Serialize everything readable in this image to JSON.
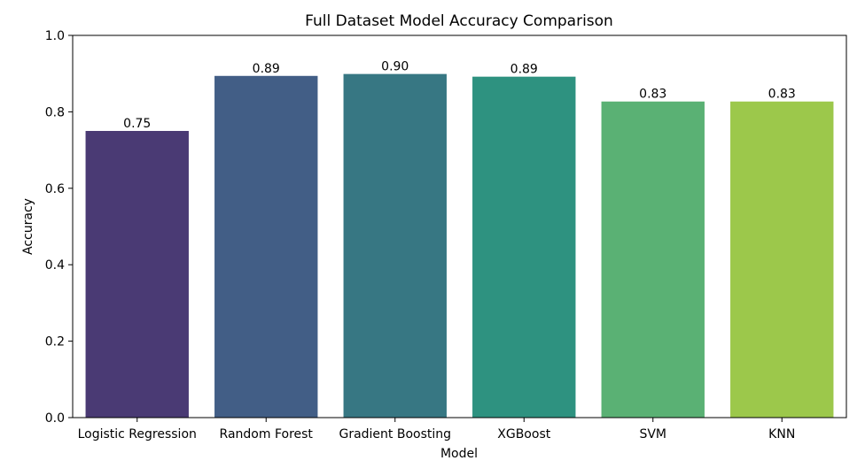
{
  "chart_data": {
    "type": "bar",
    "title": "Full Dataset Model Accuracy Comparison",
    "xlabel": "Model",
    "ylabel": "Accuracy",
    "categories": [
      "Logistic Regression",
      "Random Forest",
      "Gradient Boosting",
      "XGBoost",
      "SVM",
      "KNN"
    ],
    "values": [
      0.75,
      0.894,
      0.899,
      0.892,
      0.827,
      0.827
    ],
    "value_labels": [
      "0.75",
      "0.89",
      "0.90",
      "0.89",
      "0.83",
      "0.83"
    ],
    "ylim": [
      0,
      1.0
    ],
    "yticks": [
      0.0,
      0.2,
      0.4,
      0.6,
      0.8,
      1.0
    ],
    "ytick_labels": [
      "0.0",
      "0.2",
      "0.4",
      "0.6",
      "0.8",
      "1.0"
    ],
    "colors": [
      "#4a3a74",
      "#425e86",
      "#377783",
      "#2e9280",
      "#5ab174",
      "#9cc84b"
    ],
    "grid": false,
    "legend": false
  }
}
